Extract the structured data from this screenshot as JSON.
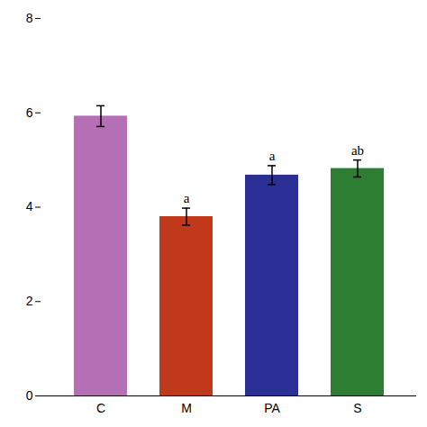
{
  "chart_data": {
    "type": "bar",
    "categories": [
      "C",
      "M",
      "PA",
      "S"
    ],
    "values": [
      5.93,
      3.8,
      4.68,
      4.82
    ],
    "errors": [
      0.22,
      0.18,
      0.2,
      0.18
    ],
    "colors": [
      "#b570b5",
      "#c0391b",
      "#2b2f96",
      "#2d7d32"
    ],
    "annotations": [
      null,
      "a",
      "a",
      "ab"
    ],
    "ylim": [
      0,
      8
    ],
    "yticks": [
      0,
      2,
      4,
      6,
      8
    ],
    "grid": false
  }
}
